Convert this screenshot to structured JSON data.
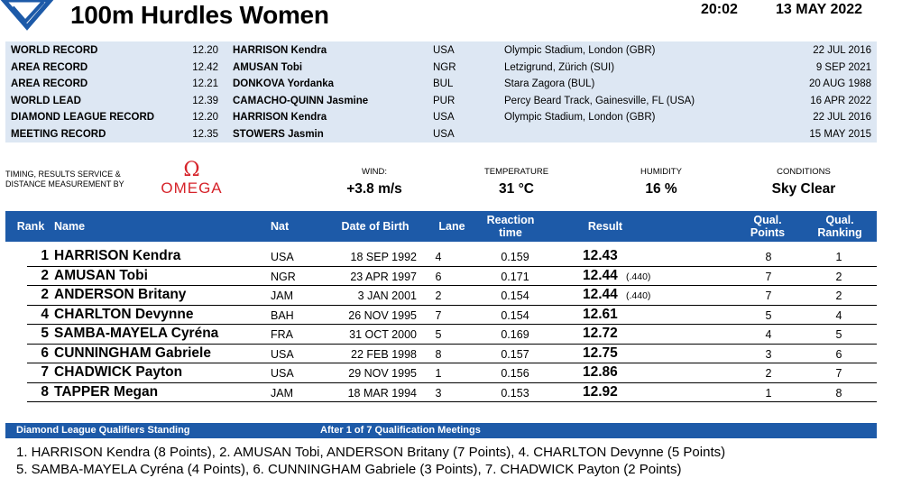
{
  "header": {
    "title": "100m Hurdles Women",
    "time": "20:02",
    "date": "13 MAY 2022"
  },
  "records": [
    {
      "type": "WORLD RECORD",
      "perf": "12.20",
      "name": "HARRISON Kendra",
      "nat": "USA",
      "venue": "Olympic Stadium, London (GBR)",
      "date": "22 JUL 2016"
    },
    {
      "type": "AREA RECORD",
      "perf": "12.42",
      "name": "AMUSAN Tobi",
      "nat": "NGR",
      "venue": "Letzigrund, Zürich (SUI)",
      "date": "9 SEP 2021"
    },
    {
      "type": "AREA RECORD",
      "perf": "12.21",
      "name": "DONKOVA Yordanka",
      "nat": "BUL",
      "venue": "Stara Zagora (BUL)",
      "date": "20 AUG 1988"
    },
    {
      "type": "WORLD LEAD",
      "perf": "12.39",
      "name": "CAMACHO-QUINN Jasmine",
      "nat": "PUR",
      "venue": "Percy Beard Track, Gainesville, FL (USA)",
      "date": "16 APR 2022"
    },
    {
      "type": "DIAMOND LEAGUE RECORD",
      "perf": "12.20",
      "name": "HARRISON Kendra",
      "nat": "USA",
      "venue": "Olympic Stadium, London (GBR)",
      "date": "22 JUL 2016"
    },
    {
      "type": "MEETING RECORD",
      "perf": "12.35",
      "name": "STOWERS Jasmin",
      "nat": "USA",
      "venue": "",
      "date": "15 MAY 2015"
    }
  ],
  "timing": {
    "label_line1": "TIMING, RESULTS SERVICE &",
    "label_line2": "DISTANCE MEASUREMENT BY",
    "brand_symbol": "Ω",
    "brand": "OMEGA",
    "brand_color": "#d6232a"
  },
  "conditions": {
    "wind_label": "WIND:",
    "wind": "+3.8 m/s",
    "temp_label": "TEMPERATURE",
    "temp": "31 °C",
    "humidity_label": "HUMIDITY",
    "humidity": "16 %",
    "cond_label": "CONDITIONS",
    "cond": "Sky Clear"
  },
  "table": {
    "headers": {
      "rank": "Rank",
      "name": "Name",
      "nat": "Nat",
      "dob": "Date of Birth",
      "lane": "Lane",
      "reaction_1": "Reaction",
      "reaction_2": "time",
      "result": "Result",
      "qpts_1": "Qual.",
      "qpts_2": "Points",
      "qrank_1": "Qual.",
      "qrank_2": "Ranking"
    },
    "rows": [
      {
        "rank": "1",
        "name": "HARRISON Kendra",
        "nat": "USA",
        "dob": "18 SEP 1992",
        "lane": "4",
        "reaction": "0.159",
        "result": "12.43",
        "tie": "",
        "pts": "8",
        "rkg": "1"
      },
      {
        "rank": "2",
        "name": "AMUSAN Tobi",
        "nat": "NGR",
        "dob": "23 APR 1997",
        "lane": "6",
        "reaction": "0.171",
        "result": "12.44",
        "tie": "(.440)",
        "pts": "7",
        "rkg": "2"
      },
      {
        "rank": "2",
        "name": "ANDERSON Britany",
        "nat": "JAM",
        "dob": "3 JAN 2001",
        "lane": "2",
        "reaction": "0.154",
        "result": "12.44",
        "tie": "(.440)",
        "pts": "7",
        "rkg": "2"
      },
      {
        "rank": "4",
        "name": "CHARLTON Devynne",
        "nat": "BAH",
        "dob": "26 NOV 1995",
        "lane": "7",
        "reaction": "0.154",
        "result": "12.61",
        "tie": "",
        "pts": "5",
        "rkg": "4"
      },
      {
        "rank": "5",
        "name": "SAMBA-MAYELA Cyréna",
        "nat": "FRA",
        "dob": "31 OCT 2000",
        "lane": "5",
        "reaction": "0.169",
        "result": "12.72",
        "tie": "",
        "pts": "4",
        "rkg": "5"
      },
      {
        "rank": "6",
        "name": "CUNNINGHAM Gabriele",
        "nat": "USA",
        "dob": "22 FEB 1998",
        "lane": "8",
        "reaction": "0.157",
        "result": "12.75",
        "tie": "",
        "pts": "3",
        "rkg": "6"
      },
      {
        "rank": "7",
        "name": "CHADWICK Payton",
        "nat": "USA",
        "dob": "29 NOV 1995",
        "lane": "1",
        "reaction": "0.156",
        "result": "12.86",
        "tie": "",
        "pts": "2",
        "rkg": "7"
      },
      {
        "rank": "8",
        "name": "TAPPER Megan",
        "nat": "JAM",
        "dob": "18 MAR 1994",
        "lane": "3",
        "reaction": "0.153",
        "result": "12.92",
        "tie": "",
        "pts": "1",
        "rkg": "8"
      }
    ]
  },
  "standing": {
    "title": "Diamond League Qualifiers Standing",
    "subtitle": "After 1 of 7 Qualification Meetings",
    "line1": "1. HARRISON Kendra (8 Points), 2. AMUSAN Tobi, ANDERSON Britany (7 Points), 4. CHARLTON Devynne (5 Points)",
    "line2": "5. SAMBA-MAYELA Cyréna (4 Points), 6. CUNNINGHAM Gabriele (3 Points), 7. CHADWICK Payton (2 Points)"
  },
  "colors": {
    "header_blue": "#1d5aa8",
    "record_band": "#dde7f3"
  }
}
